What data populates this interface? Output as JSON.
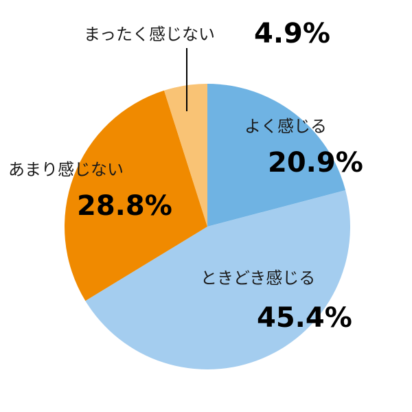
{
  "chart_data": {
    "type": "pie",
    "start": "top",
    "direction": "clockwise",
    "slices": [
      {
        "label": "よく感じる",
        "value": 20.9,
        "value_label": "20.9%",
        "color": "#6fb3e3"
      },
      {
        "label": "ときどき感じる",
        "value": 45.4,
        "value_label": "45.4%",
        "color": "#a4cdef"
      },
      {
        "label": "あまり感じない",
        "value": 28.8,
        "value_label": "28.8%",
        "color": "#f08a00"
      },
      {
        "label": "まったく感じない",
        "value": 4.9,
        "value_label": "4.9%",
        "color": "#f9c375"
      }
    ]
  }
}
